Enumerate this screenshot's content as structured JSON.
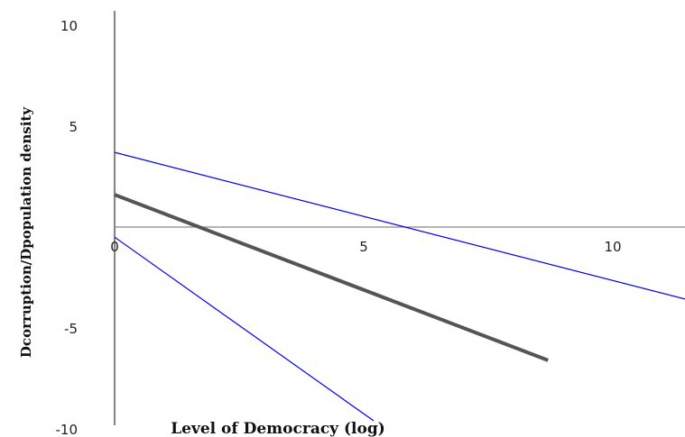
{
  "chart_data": {
    "type": "line",
    "title": "",
    "xlabel": "Level of Democracy (log)",
    "ylabel": "Dcorruption/Dpopulation density",
    "xlim": [
      -2.3,
      11.5
    ],
    "ylim": [
      -10,
      10
    ],
    "x_ticks": [
      "0",
      "5",
      "10"
    ],
    "y_ticks": [
      "10",
      "5",
      "-5",
      "-10"
    ],
    "x_tick_values": [
      0,
      5,
      10
    ],
    "y_tick_values": [
      10,
      5,
      -5,
      -10
    ],
    "grid": false,
    "legend": "none",
    "series": [
      {
        "role": "upper-bound",
        "color": "#0000ee",
        "x": [
          0,
          11.5
        ],
        "y": [
          3.7,
          -3.6
        ]
      },
      {
        "role": "estimate",
        "color": "#555555",
        "x": [
          0,
          8.7
        ],
        "y": [
          1.6,
          -6.6
        ]
      },
      {
        "role": "lower-bound",
        "color": "#0000ee",
        "x": [
          0,
          5.2
        ],
        "y": [
          -0.5,
          -9.6
        ]
      }
    ]
  }
}
